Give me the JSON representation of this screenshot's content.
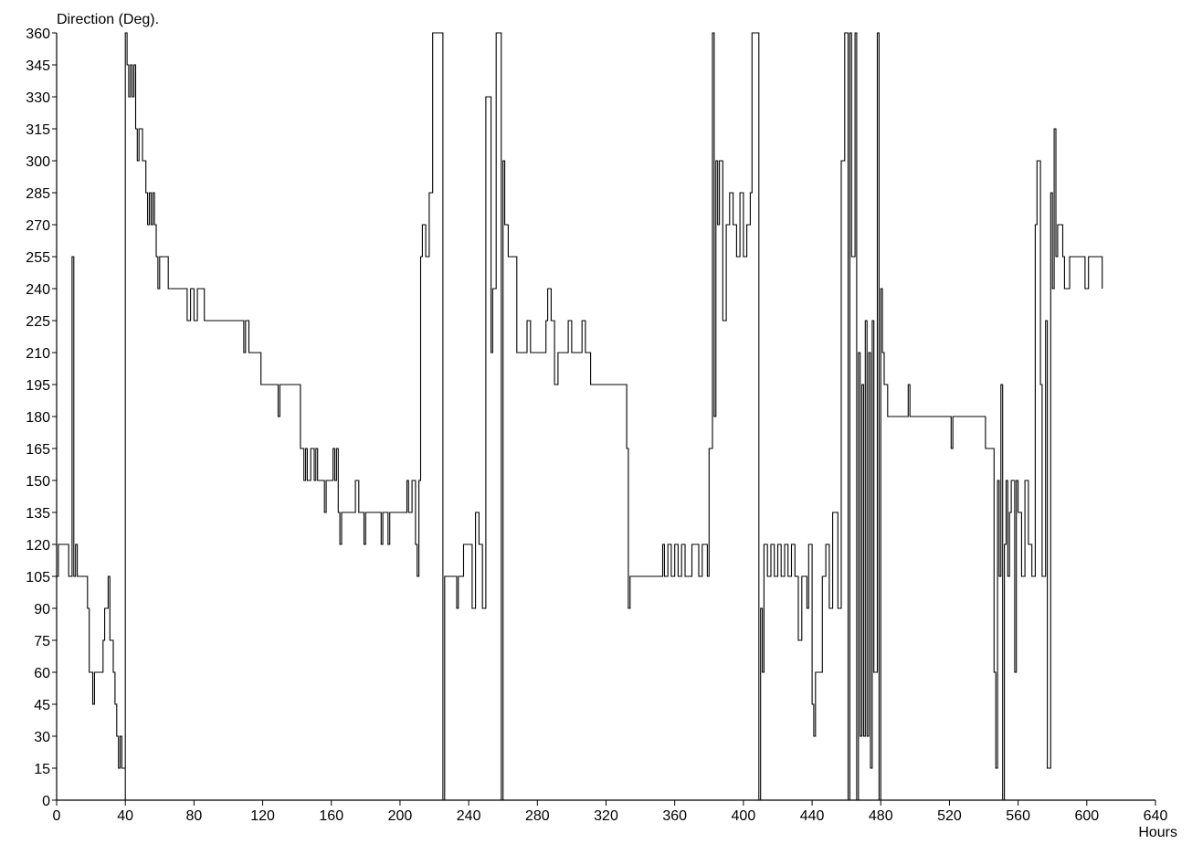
{
  "chart_data": {
    "type": "line",
    "title": "",
    "ylabel": "Direction (Deg).",
    "xlabel": "Hours",
    "xlim": [
      0,
      640
    ],
    "ylim": [
      0,
      360
    ],
    "x_ticks": [
      0,
      40,
      80,
      120,
      160,
      200,
      240,
      280,
      320,
      360,
      400,
      440,
      480,
      520,
      560,
      600,
      640
    ],
    "y_ticks": [
      0,
      15,
      30,
      45,
      60,
      75,
      90,
      105,
      120,
      135,
      150,
      165,
      180,
      195,
      210,
      225,
      240,
      255,
      270,
      285,
      300,
      315,
      330,
      345,
      360
    ],
    "grid": false,
    "line_color": "#000000",
    "series": [
      {
        "values": [
          [
            0,
            105
          ],
          [
            1,
            120
          ],
          [
            6,
            120
          ],
          [
            7,
            105
          ],
          [
            9,
            255
          ],
          [
            10,
            105
          ],
          [
            11,
            120
          ],
          [
            12,
            105
          ],
          [
            17,
            105
          ],
          [
            18,
            90
          ],
          [
            19,
            60
          ],
          [
            21,
            45
          ],
          [
            22,
            60
          ],
          [
            25,
            60
          ],
          [
            27,
            75
          ],
          [
            28,
            90
          ],
          [
            30,
            105
          ],
          [
            31,
            75
          ],
          [
            33,
            60
          ],
          [
            34,
            45
          ],
          [
            35,
            30
          ],
          [
            36,
            15
          ],
          [
            37,
            30
          ],
          [
            38,
            15
          ],
          [
            40,
            0
          ],
          [
            40,
            360
          ],
          [
            41,
            345
          ],
          [
            42,
            330
          ],
          [
            43,
            345
          ],
          [
            44,
            330
          ],
          [
            45,
            345
          ],
          [
            46,
            315
          ],
          [
            47,
            300
          ],
          [
            48,
            315
          ],
          [
            50,
            300
          ],
          [
            52,
            285
          ],
          [
            53,
            270
          ],
          [
            54,
            285
          ],
          [
            55,
            270
          ],
          [
            56,
            285
          ],
          [
            57,
            270
          ],
          [
            58,
            255
          ],
          [
            59,
            240
          ],
          [
            60,
            255
          ],
          [
            63,
            255
          ],
          [
            65,
            240
          ],
          [
            75,
            240
          ],
          [
            76,
            225
          ],
          [
            78,
            240
          ],
          [
            80,
            225
          ],
          [
            82,
            240
          ],
          [
            86,
            225
          ],
          [
            108,
            225
          ],
          [
            109,
            210
          ],
          [
            110,
            225
          ],
          [
            112,
            210
          ],
          [
            117,
            210
          ],
          [
            119,
            195
          ],
          [
            128,
            195
          ],
          [
            129,
            180
          ],
          [
            130,
            195
          ],
          [
            141,
            195
          ],
          [
            142,
            165
          ],
          [
            144,
            150
          ],
          [
            145,
            165
          ],
          [
            146,
            150
          ],
          [
            148,
            165
          ],
          [
            150,
            150
          ],
          [
            151,
            165
          ],
          [
            152,
            150
          ],
          [
            155,
            150
          ],
          [
            156,
            135
          ],
          [
            157,
            150
          ],
          [
            160,
            150
          ],
          [
            161,
            165
          ],
          [
            162,
            150
          ],
          [
            163,
            165
          ],
          [
            164,
            135
          ],
          [
            165,
            120
          ],
          [
            166,
            135
          ],
          [
            172,
            135
          ],
          [
            174,
            150
          ],
          [
            176,
            135
          ],
          [
            179,
            120
          ],
          [
            180,
            135
          ],
          [
            188,
            135
          ],
          [
            189,
            120
          ],
          [
            190,
            135
          ],
          [
            193,
            120
          ],
          [
            194,
            135
          ],
          [
            203,
            135
          ],
          [
            204,
            150
          ],
          [
            205,
            135
          ],
          [
            207,
            150
          ],
          [
            209,
            120
          ],
          [
            210,
            105
          ],
          [
            211,
            150
          ],
          [
            212,
            255
          ],
          [
            213,
            270
          ],
          [
            215,
            255
          ],
          [
            217,
            285
          ],
          [
            219,
            360
          ],
          [
            225,
            0
          ],
          [
            226,
            105
          ],
          [
            232,
            105
          ],
          [
            233,
            90
          ],
          [
            234,
            105
          ],
          [
            237,
            120
          ],
          [
            240,
            120
          ],
          [
            242,
            90
          ],
          [
            244,
            135
          ],
          [
            246,
            120
          ],
          [
            248,
            90
          ],
          [
            250,
            330
          ],
          [
            253,
            210
          ],
          [
            254,
            240
          ],
          [
            256,
            360
          ],
          [
            259,
            0
          ],
          [
            260,
            300
          ],
          [
            261,
            270
          ],
          [
            263,
            255
          ],
          [
            267,
            255
          ],
          [
            268,
            210
          ],
          [
            272,
            210
          ],
          [
            274,
            225
          ],
          [
            276,
            210
          ],
          [
            283,
            210
          ],
          [
            285,
            225
          ],
          [
            286,
            240
          ],
          [
            288,
            225
          ],
          [
            290,
            195
          ],
          [
            292,
            210
          ],
          [
            296,
            210
          ],
          [
            298,
            225
          ],
          [
            300,
            210
          ],
          [
            305,
            210
          ],
          [
            306,
            225
          ],
          [
            308,
            210
          ],
          [
            311,
            195
          ],
          [
            331,
            195
          ],
          [
            332,
            165
          ],
          [
            333,
            90
          ],
          [
            334,
            105
          ],
          [
            352,
            105
          ],
          [
            353,
            120
          ],
          [
            354,
            105
          ],
          [
            356,
            120
          ],
          [
            358,
            105
          ],
          [
            360,
            120
          ],
          [
            362,
            105
          ],
          [
            364,
            120
          ],
          [
            366,
            105
          ],
          [
            370,
            120
          ],
          [
            374,
            105
          ],
          [
            376,
            120
          ],
          [
            379,
            105
          ],
          [
            380,
            165
          ],
          [
            382,
            360
          ],
          [
            383,
            180
          ],
          [
            384,
            300
          ],
          [
            385,
            270
          ],
          [
            386,
            300
          ],
          [
            388,
            225
          ],
          [
            390,
            270
          ],
          [
            392,
            285
          ],
          [
            394,
            270
          ],
          [
            396,
            255
          ],
          [
            398,
            285
          ],
          [
            400,
            255
          ],
          [
            402,
            270
          ],
          [
            404,
            285
          ],
          [
            405,
            360
          ],
          [
            409,
            0
          ],
          [
            410,
            90
          ],
          [
            411,
            60
          ],
          [
            412,
            120
          ],
          [
            414,
            105
          ],
          [
            416,
            120
          ],
          [
            418,
            105
          ],
          [
            420,
            120
          ],
          [
            422,
            105
          ],
          [
            424,
            120
          ],
          [
            426,
            105
          ],
          [
            428,
            120
          ],
          [
            430,
            105
          ],
          [
            432,
            75
          ],
          [
            434,
            105
          ],
          [
            437,
            90
          ],
          [
            438,
            120
          ],
          [
            440,
            45
          ],
          [
            441,
            30
          ],
          [
            442,
            60
          ],
          [
            446,
            105
          ],
          [
            448,
            120
          ],
          [
            450,
            90
          ],
          [
            452,
            135
          ],
          [
            455,
            90
          ],
          [
            457,
            300
          ],
          [
            459,
            360
          ],
          [
            461,
            0
          ],
          [
            462,
            360
          ],
          [
            463,
            255
          ],
          [
            465,
            360
          ],
          [
            466,
            0
          ],
          [
            467,
            210
          ],
          [
            468,
            30
          ],
          [
            469,
            195
          ],
          [
            470,
            30
          ],
          [
            471,
            225
          ],
          [
            472,
            30
          ],
          [
            473,
            210
          ],
          [
            474,
            15
          ],
          [
            475,
            225
          ],
          [
            476,
            60
          ],
          [
            478,
            360
          ],
          [
            479,
            0
          ],
          [
            480,
            240
          ],
          [
            481,
            210
          ],
          [
            482,
            195
          ],
          [
            484,
            180
          ],
          [
            495,
            180
          ],
          [
            496,
            195
          ],
          [
            497,
            180
          ],
          [
            520,
            180
          ],
          [
            521,
            165
          ],
          [
            522,
            180
          ],
          [
            540,
            180
          ],
          [
            541,
            165
          ],
          [
            544,
            165
          ],
          [
            546,
            60
          ],
          [
            547,
            15
          ],
          [
            548,
            150
          ],
          [
            549,
            105
          ],
          [
            550,
            195
          ],
          [
            551,
            0
          ],
          [
            552,
            120
          ],
          [
            553,
            150
          ],
          [
            554,
            105
          ],
          [
            555,
            135
          ],
          [
            556,
            150
          ],
          [
            558,
            60
          ],
          [
            559,
            150
          ],
          [
            560,
            135
          ],
          [
            562,
            105
          ],
          [
            564,
            150
          ],
          [
            566,
            120
          ],
          [
            568,
            105
          ],
          [
            570,
            270
          ],
          [
            571,
            300
          ],
          [
            573,
            195
          ],
          [
            574,
            105
          ],
          [
            576,
            225
          ],
          [
            577,
            15
          ],
          [
            579,
            285
          ],
          [
            580,
            240
          ],
          [
            581,
            315
          ],
          [
            582,
            255
          ],
          [
            583,
            270
          ],
          [
            586,
            255
          ],
          [
            587,
            240
          ],
          [
            590,
            255
          ],
          [
            597,
            255
          ],
          [
            599,
            240
          ],
          [
            601,
            255
          ],
          [
            608,
            255
          ],
          [
            609,
            240
          ]
        ]
      }
    ]
  }
}
